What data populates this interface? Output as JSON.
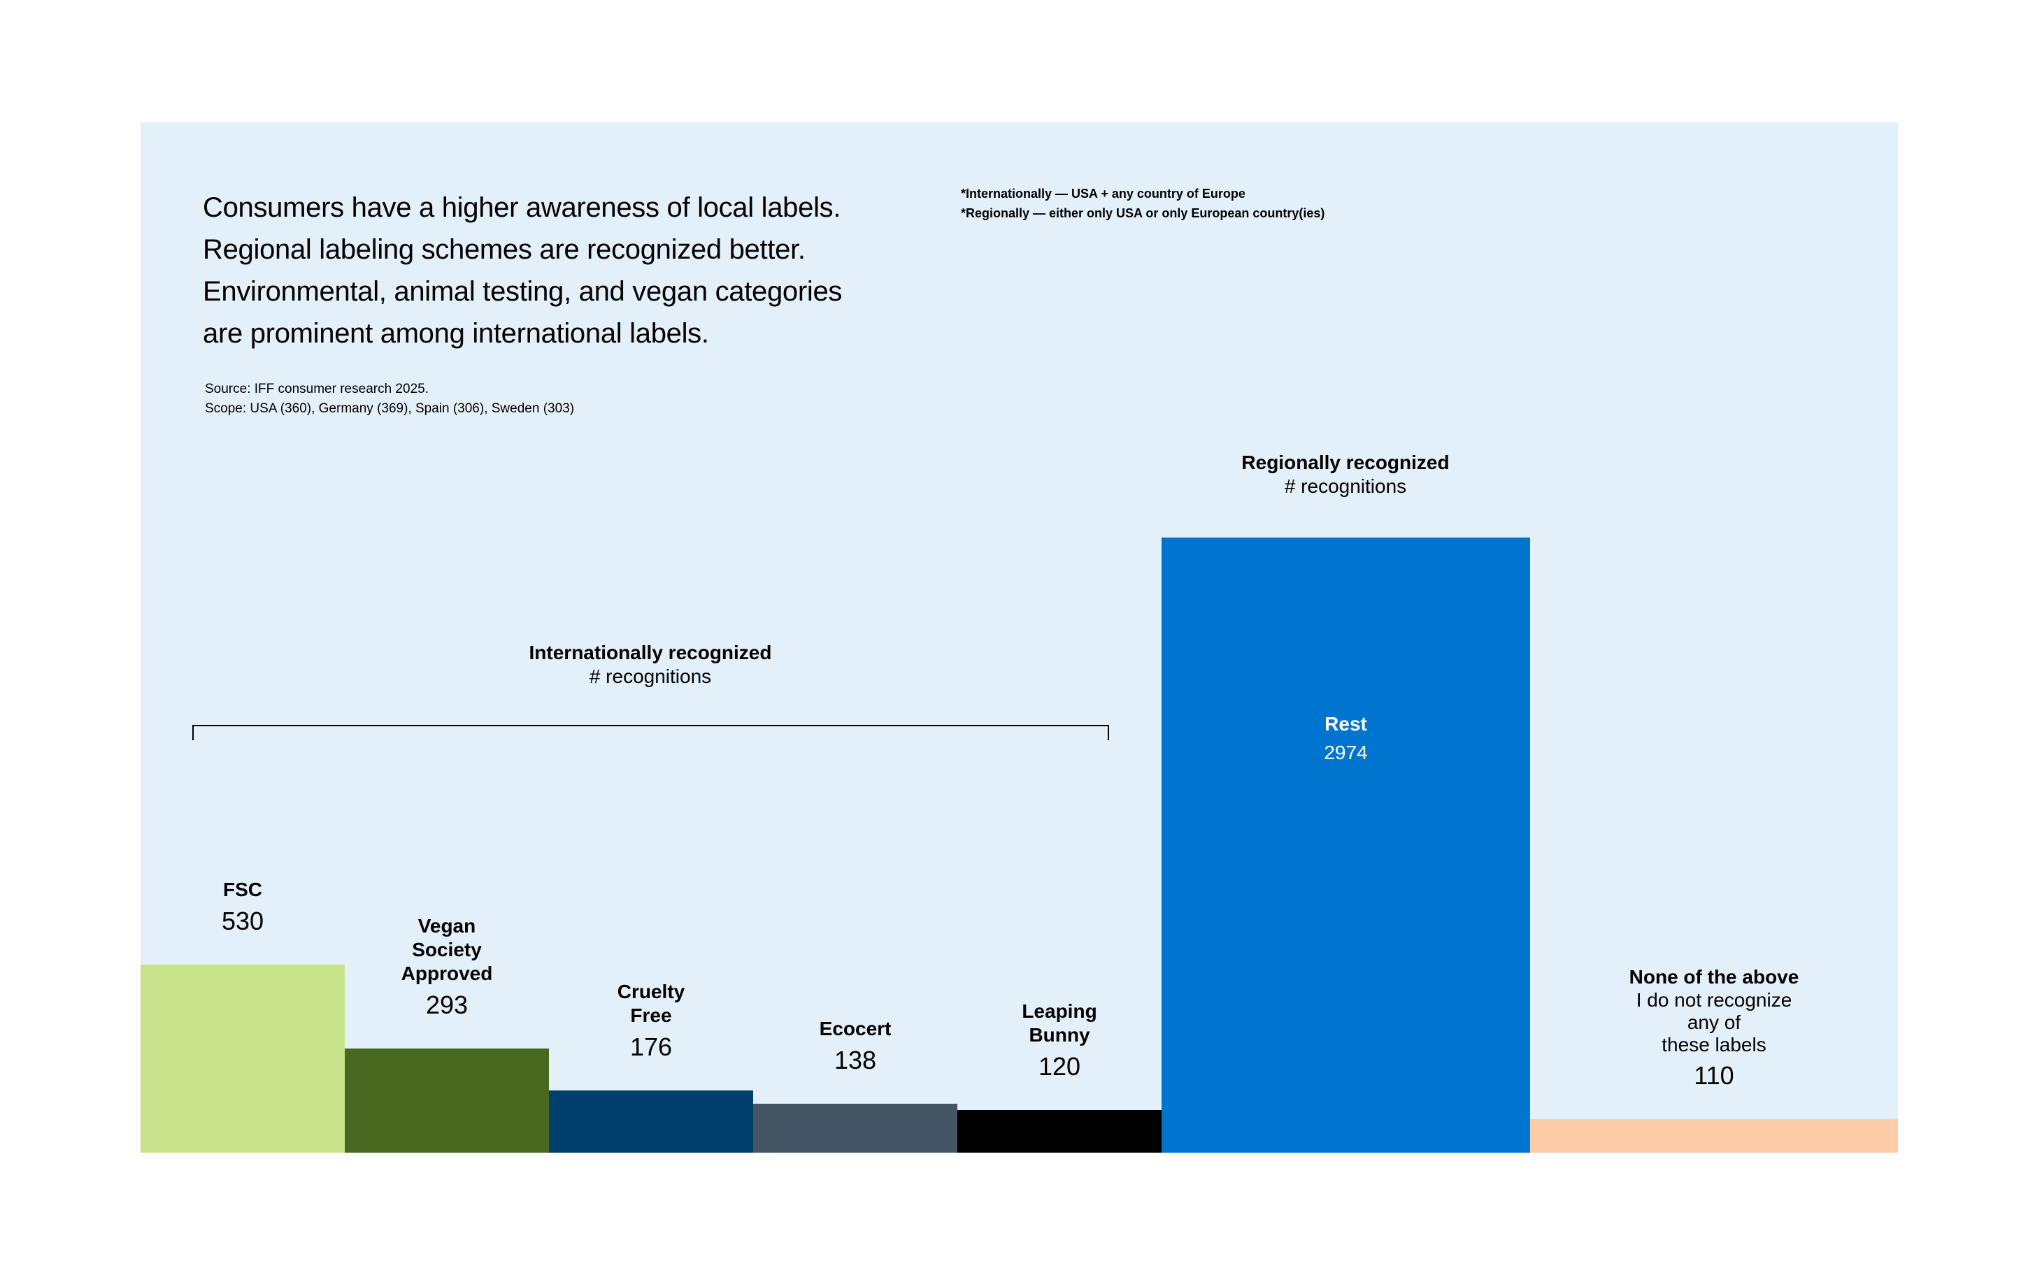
{
  "headline": [
    "Consumers have a higher awareness of local labels.",
    "Regional labeling schemes are recognized better.",
    "Environmental, animal testing, and vegan categories",
    "are prominent among international labels."
  ],
  "source": [
    "Source: IFF consumer research 2025.",
    "Scope: USA (360), Germany (369), Spain (306), Sweden (303)"
  ],
  "notes": [
    "*Internationally — USA + any country of Europe",
    "*Regionally — either only USA or only European country(ies)"
  ],
  "groups": {
    "international": {
      "title": "Internationally recognized",
      "subtitle": "# recognitions"
    },
    "regional": {
      "title": "Regionally recognized",
      "subtitle": "# recognitions"
    }
  },
  "chart_data": {
    "type": "bar",
    "encoding": "bar area proportional to value; variable widths",
    "categories": [
      "FSC",
      "Vegan Society Approved",
      "Cruelty Free",
      "Ecocert",
      "Leaping Bunny",
      "Rest",
      "None of the above"
    ],
    "values": [
      530,
      293,
      176,
      138,
      120,
      2974,
      110
    ],
    "bars": [
      {
        "name": "FSC",
        "lines": [
          "FSC"
        ],
        "value": 530,
        "color": "#c8e38b",
        "group": "international"
      },
      {
        "name": "Vegan Society Approved",
        "lines": [
          "Vegan",
          "Society",
          "Approved"
        ],
        "value": 293,
        "color": "#48691f",
        "group": "international"
      },
      {
        "name": "Cruelty Free",
        "lines": [
          "Cruelty",
          "Free"
        ],
        "value": 176,
        "color": "#003f6b",
        "group": "international"
      },
      {
        "name": "Ecocert",
        "lines": [
          "Ecocert"
        ],
        "value": 138,
        "color": "#445566",
        "group": "international"
      },
      {
        "name": "Leaping Bunny",
        "lines": [
          "Leaping",
          "Bunny"
        ],
        "value": 120,
        "color": "#000000",
        "group": "international"
      },
      {
        "name": "Rest",
        "lines": [
          "Rest"
        ],
        "value": 2974,
        "color": "#0075d0",
        "group": "regional",
        "label_inside": true
      },
      {
        "name": "None of the above",
        "lines": [
          "None of the above"
        ],
        "sub": [
          "I do not recognize any of",
          "these labels"
        ],
        "value": 110,
        "color": "#fecca8",
        "group": "none"
      }
    ],
    "axes": "none",
    "grid": false
  }
}
